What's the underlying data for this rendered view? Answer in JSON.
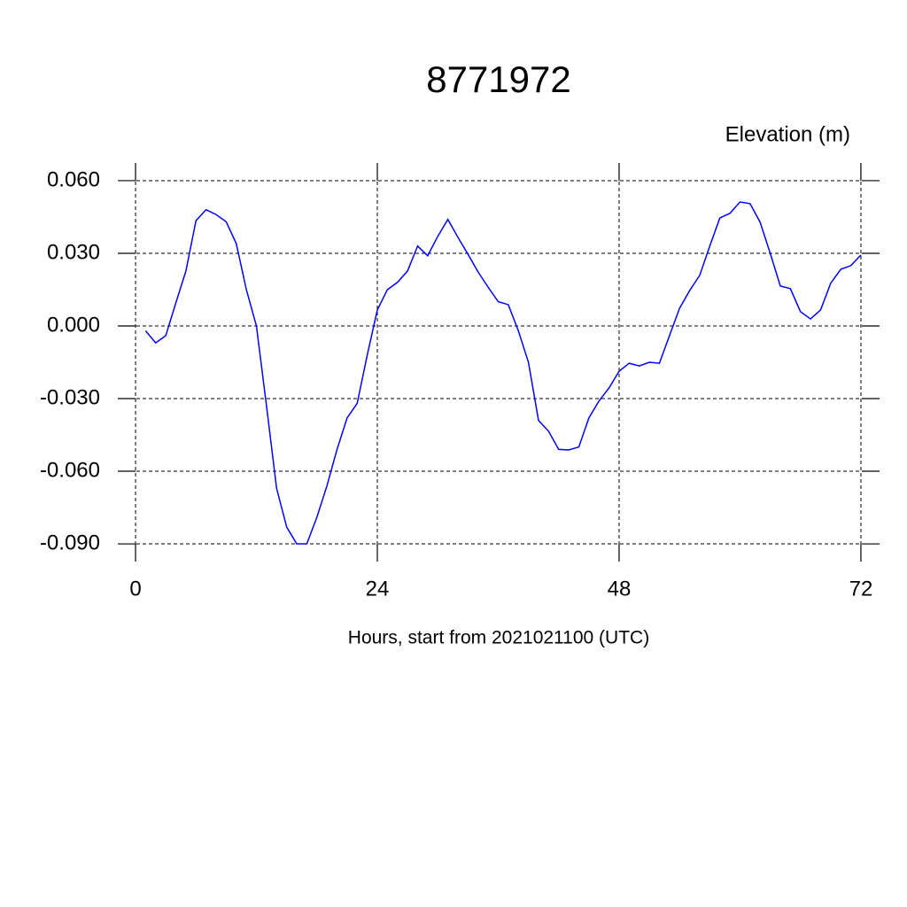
{
  "chart_data": {
    "type": "line",
    "title": "8771972",
    "ylabel": "Elevation (m)",
    "xlabel": "Hours, start from 2021021100 (UTC)",
    "x": [
      1,
      2,
      3,
      4,
      5,
      6,
      7,
      8,
      9,
      10,
      11,
      12,
      13,
      14,
      15,
      16,
      17,
      18,
      19,
      20,
      21,
      22,
      23,
      24,
      25,
      26,
      27,
      28,
      29,
      30,
      31,
      32,
      33,
      34,
      35,
      36,
      37,
      38,
      39,
      40,
      41,
      42,
      43,
      44,
      45,
      46,
      47,
      48,
      49,
      50,
      51,
      52,
      53,
      54,
      55,
      56,
      57,
      58,
      59,
      60,
      61,
      62,
      63,
      64,
      65,
      66,
      67,
      68,
      69,
      70,
      71,
      72
    ],
    "series": [
      {
        "name": "Elevation (m)",
        "color": "#0000ff",
        "values": [
          -0.002,
          -0.007,
          -0.004,
          0.0095,
          0.0227,
          0.0435,
          0.048,
          0.046,
          0.043,
          0.034,
          0.015,
          0.0,
          -0.033,
          -0.067,
          -0.083,
          -0.09,
          -0.09,
          -0.079,
          -0.066,
          -0.051,
          -0.038,
          -0.032,
          -0.012,
          0.0066,
          0.015,
          0.018,
          0.0227,
          0.033,
          0.029,
          0.037,
          0.044,
          0.0366,
          0.0296,
          0.0223,
          0.016,
          0.01,
          0.0088,
          -0.002,
          -0.015,
          -0.039,
          -0.0435,
          -0.051,
          -0.0512,
          -0.05,
          -0.038,
          -0.031,
          -0.0256,
          -0.0187,
          -0.0154,
          -0.0165,
          -0.015,
          -0.0154,
          -0.004,
          0.0073,
          0.0146,
          0.0209,
          0.033,
          0.0446,
          0.0465,
          0.0512,
          0.0505,
          0.0428,
          0.03,
          0.0165,
          0.0154,
          0.0059,
          0.0029,
          0.0066,
          0.0176,
          0.0234,
          0.0249,
          0.0293
        ]
      }
    ],
    "xlim": [
      -1.76,
      73.85
    ],
    "ylim": [
      -0.0973,
      0.0673
    ],
    "xticks": [
      0,
      24,
      48,
      72
    ],
    "yticks": [
      {
        "value": 0.06,
        "label": "0.060"
      },
      {
        "value": 0.03,
        "label": "0.030"
      },
      {
        "value": 0,
        "label": "0.000"
      },
      {
        "value": -0.03,
        "label": "-0.030"
      },
      {
        "value": -0.06,
        "label": "-0.060"
      },
      {
        "value": -0.09,
        "label": "-0.090"
      }
    ],
    "grid": true
  }
}
